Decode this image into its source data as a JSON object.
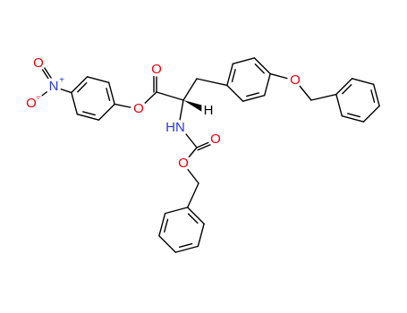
{
  "atoms": {
    "nitro_o_top": "O",
    "nitro_n": "N",
    "nitro_n_charge": "+",
    "nitro_o_bottom": "O",
    "nitro_o_charge": "−",
    "ester_o": "O",
    "ester_carbonyl_o": "O",
    "alpha_h": "H",
    "amide_nh": "HN",
    "carbamate_carbonyl_o": "O",
    "carbamate_o": "O",
    "ether_o": "O"
  }
}
